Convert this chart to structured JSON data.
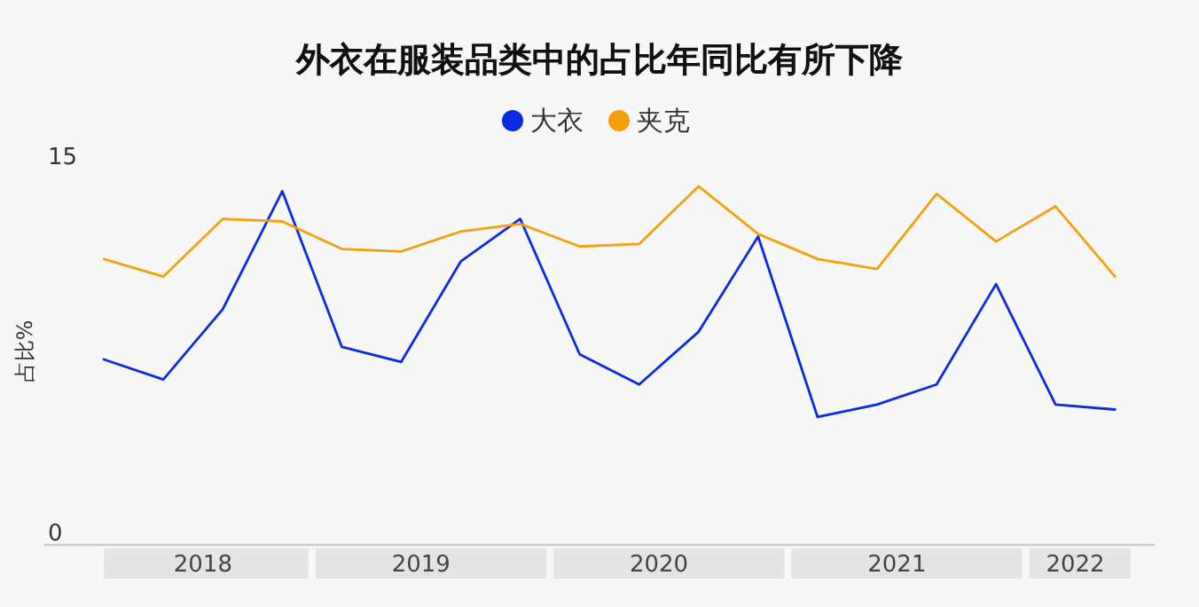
{
  "chart_data": {
    "type": "line",
    "title": "外衣在服装品类中的占比年同比有所下降",
    "ylabel": "占比%",
    "x": [
      "2018-03",
      "2018-06",
      "2018-09",
      "2018-12",
      "2019-03",
      "2019-06",
      "2019-09",
      "2019-12",
      "2020-03",
      "2020-06",
      "2020-09",
      "2020-12",
      "2021-03",
      "2021-06",
      "2021-09",
      "2021-12",
      "2022-03",
      "2022-06"
    ],
    "xlim": [
      "2017-12",
      "2022-08"
    ],
    "xticks": [
      {
        "value": "2018-08",
        "label": "2018"
      },
      {
        "value": "2019-07",
        "label": "2019"
      },
      {
        "value": "2020-07",
        "label": "2020"
      },
      {
        "value": "2021-07",
        "label": "2021"
      },
      {
        "value": "2022-04",
        "label": "2022"
      }
    ],
    "ylim": [
      0,
      15
    ],
    "yticks": [
      0,
      15
    ],
    "series": [
      {
        "name": "大衣",
        "color": "#0a2be0",
        "values": [
          6.9,
          6.1,
          8.9,
          13.6,
          7.4,
          6.8,
          10.8,
          12.5,
          7.1,
          5.9,
          8.0,
          11.8,
          4.6,
          5.1,
          5.9,
          9.9,
          5.1,
          4.9
        ]
      },
      {
        "name": "夹克",
        "color": "#f5a00f",
        "values": [
          10.9,
          10.2,
          12.5,
          12.4,
          11.3,
          11.2,
          12.0,
          12.3,
          11.4,
          11.5,
          13.8,
          11.9,
          10.9,
          10.5,
          13.5,
          11.6,
          13.0,
          10.2
        ]
      }
    ],
    "legend": "top",
    "grid": false,
    "marker": "none",
    "line_style": "solid"
  }
}
